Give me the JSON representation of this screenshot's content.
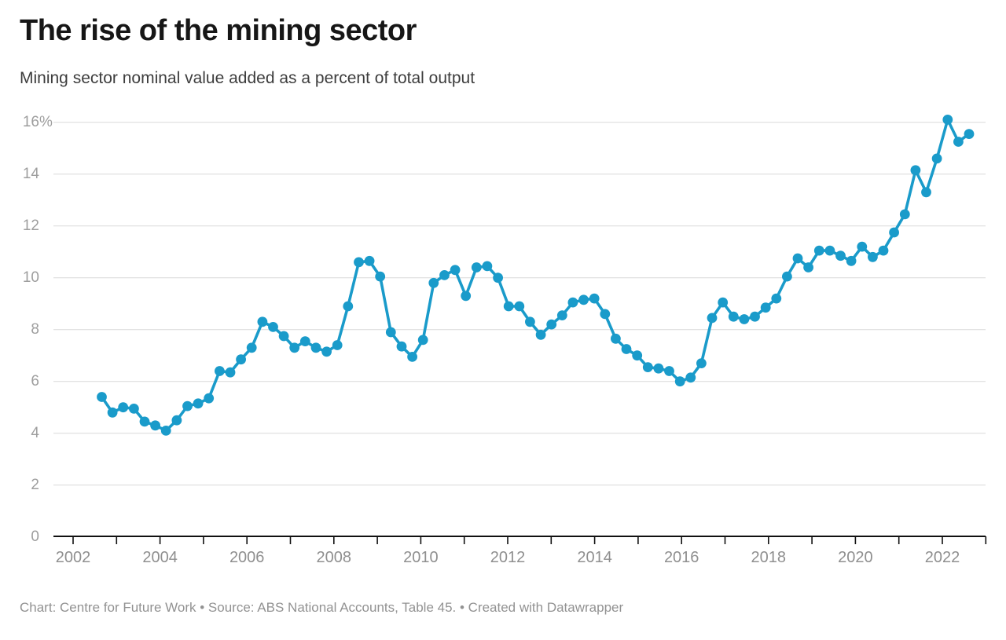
{
  "page": {
    "background": "#ffffff"
  },
  "header": {
    "title": "The rise of the mining sector",
    "subtitle": "Mining sector nominal value added as a percent of total output"
  },
  "footer": {
    "text": "Chart: Centre for Future Work • Source: ABS National Accounts, Table 45. • Created with Datawrapper"
  },
  "chart_data": {
    "type": "line",
    "title": "The rise of the mining sector",
    "subtitle": "Mining sector nominal value added as a percent of total output",
    "unit": "percent of total output",
    "series_name": "Mining sector share of total output",
    "x": [
      "2002 Q3",
      "2002 Q4",
      "2003 Q1",
      "2003 Q2",
      "2003 Q3",
      "2003 Q4",
      "2004 Q1",
      "2004 Q2",
      "2004 Q3",
      "2004 Q4",
      "2005 Q1",
      "2005 Q2",
      "2005 Q3",
      "2005 Q4",
      "2006 Q1",
      "2006 Q2",
      "2006 Q3",
      "2006 Q4",
      "2007 Q1",
      "2007 Q2",
      "2007 Q3",
      "2007 Q4",
      "2008 Q1",
      "2008 Q2",
      "2008 Q3",
      "2008 Q4",
      "2009 Q1",
      "2009 Q2",
      "2009 Q3",
      "2009 Q4",
      "2010 Q1",
      "2010 Q2",
      "2010 Q3",
      "2010 Q4",
      "2011 Q1",
      "2011 Q2",
      "2011 Q3",
      "2011 Q4",
      "2012 Q1",
      "2012 Q2",
      "2012 Q3",
      "2012 Q4",
      "2013 Q1",
      "2013 Q2",
      "2013 Q3",
      "2013 Q4",
      "2014 Q1",
      "2014 Q2",
      "2014 Q3",
      "2014 Q4",
      "2015 Q1",
      "2015 Q2",
      "2015 Q3",
      "2015 Q4",
      "2016 Q1",
      "2016 Q2",
      "2016 Q3",
      "2016 Q4",
      "2017 Q1",
      "2017 Q2",
      "2017 Q3",
      "2017 Q4",
      "2018 Q1",
      "2018 Q2",
      "2018 Q3",
      "2018 Q4",
      "2019 Q1",
      "2019 Q2",
      "2019 Q3",
      "2019 Q4",
      "2020 Q1",
      "2020 Q2",
      "2020 Q3",
      "2020 Q4",
      "2021 Q1",
      "2021 Q2",
      "2021 Q3",
      "2021 Q4",
      "2022 Q1",
      "2022 Q2",
      "2022 Q3",
      "2022 Q4"
    ],
    "values": [
      5.4,
      4.8,
      5.0,
      4.95,
      4.45,
      4.3,
      4.1,
      4.5,
      5.05,
      5.15,
      5.35,
      6.4,
      6.35,
      6.85,
      7.3,
      8.3,
      8.1,
      7.75,
      7.3,
      7.55,
      7.3,
      7.15,
      7.4,
      8.9,
      10.6,
      10.65,
      10.05,
      7.9,
      7.35,
      6.95,
      7.6,
      9.8,
      10.1,
      10.3,
      9.3,
      10.4,
      10.45,
      10.0,
      8.9,
      8.9,
      8.3,
      7.8,
      8.2,
      8.55,
      9.05,
      9.15,
      9.2,
      8.6,
      7.65,
      7.25,
      7.0,
      6.55,
      6.5,
      6.4,
      6.0,
      6.15,
      6.7,
      8.45,
      9.05,
      8.5,
      8.4,
      8.5,
      8.85,
      9.2,
      10.05,
      10.75,
      10.4,
      11.05,
      11.05,
      10.85,
      10.65,
      11.2,
      10.8,
      11.05,
      11.75,
      12.45,
      14.15,
      13.3,
      14.6,
      16.1,
      15.25,
      15.55
    ],
    "ylim": [
      0,
      16
    ],
    "ytick_interval": 2,
    "ytick_labels": [
      "0",
      "2",
      "4",
      "6",
      "8",
      "10",
      "12",
      "14",
      "16%"
    ],
    "xtick_years": [
      2002,
      2003,
      2004,
      2005,
      2006,
      2007,
      2008,
      2009,
      2010,
      2011,
      2012,
      2013,
      2014,
      2015,
      2016,
      2017,
      2018,
      2019,
      2020,
      2021,
      2022,
      2023
    ],
    "xtick_labels": [
      "2002",
      "2004",
      "2006",
      "2008",
      "2010",
      "2012",
      "2014",
      "2016",
      "2018",
      "2020",
      "2022"
    ],
    "grid": true,
    "legend": false,
    "marker": "circle",
    "line_color": "#1a9bca",
    "grid_color": "#d9d9d9",
    "axis_color": "#111111",
    "ylabel_color": "#9e9e9e",
    "xlabel_color": "#8f8f8f"
  }
}
